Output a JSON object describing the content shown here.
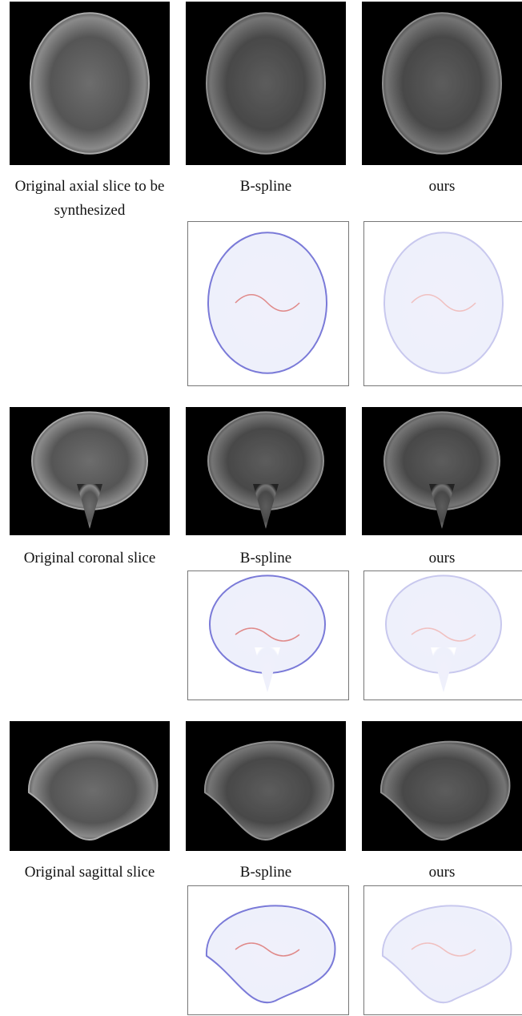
{
  "figure": {
    "groups": [
      {
        "captions": [
          "Original axial slice to be synthesized",
          "B-spline",
          "ours"
        ]
      },
      {
        "captions": [
          "Original coronal slice",
          "B-spline",
          "ours"
        ]
      },
      {
        "captions": [
          "Original sagittal slice",
          "B-spline",
          "ours"
        ]
      }
    ]
  }
}
